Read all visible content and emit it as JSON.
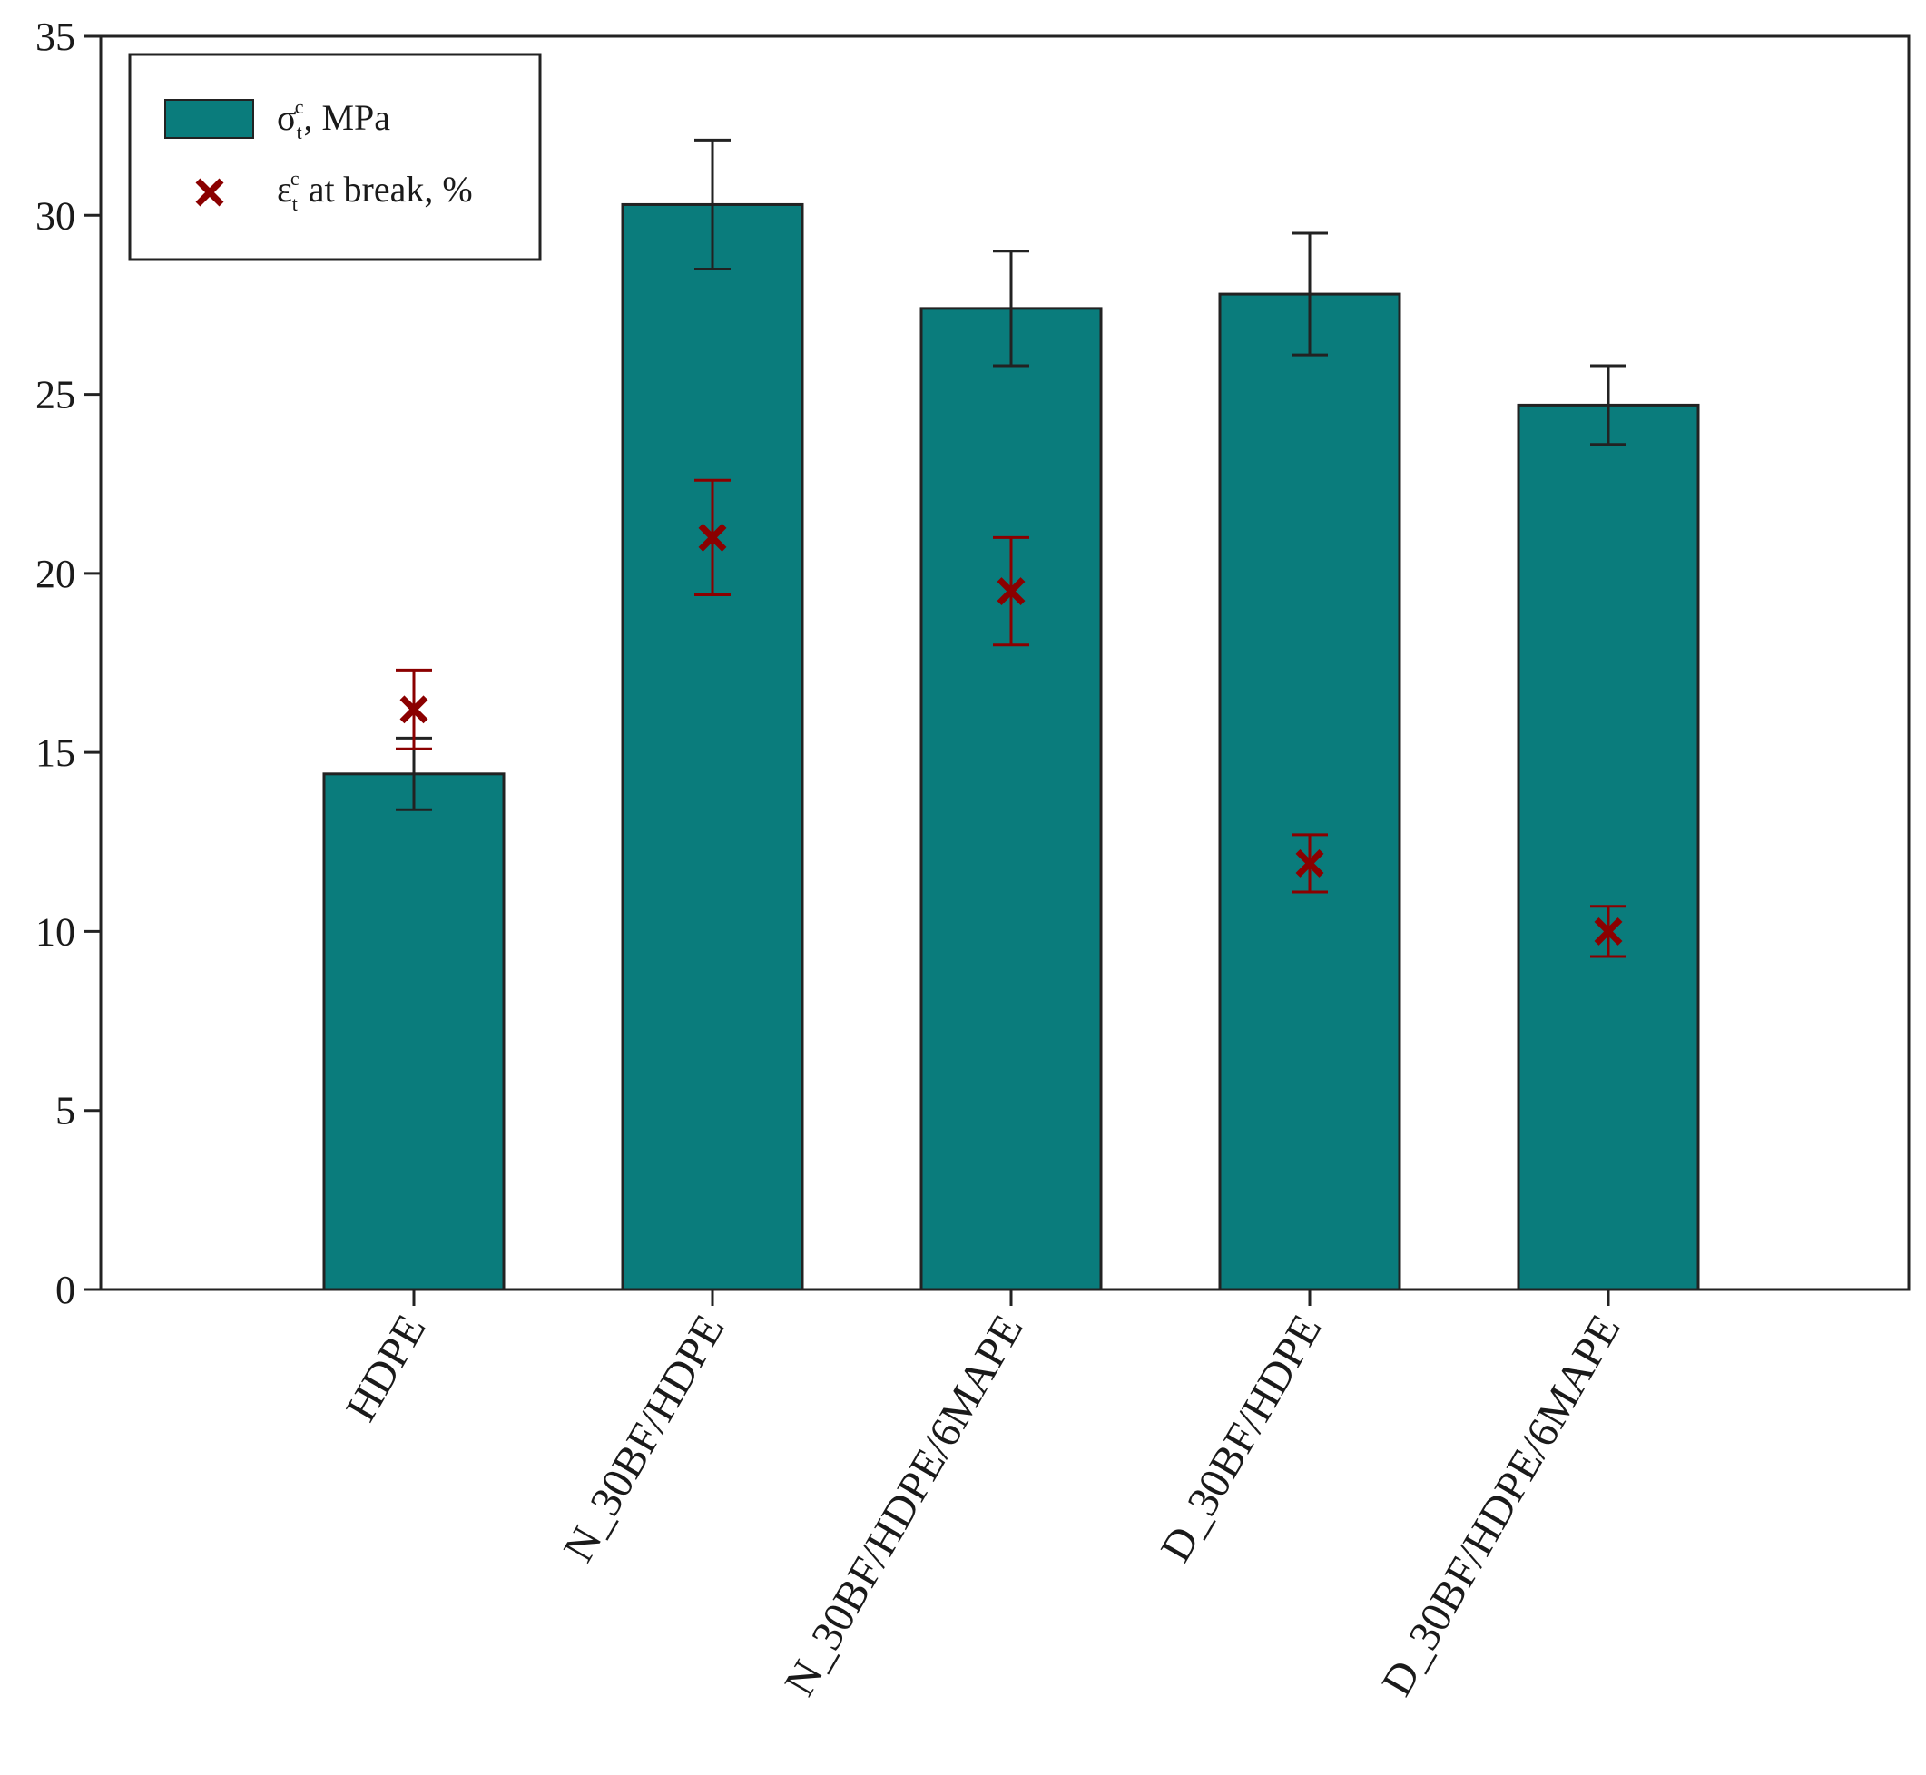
{
  "chart_data": {
    "type": "bar",
    "categories": [
      "HDPE",
      "N_30BF/HDPE",
      "N_30BF/HDPE/6MAPE",
      "D_30BF/HDPE",
      "D_30BF/HDPE/6MAPE"
    ],
    "ylim": [
      0,
      35
    ],
    "yticks": [
      "0",
      "5",
      "10",
      "15",
      "20",
      "25",
      "30",
      "35"
    ],
    "grid": false,
    "legend_position": "top-left",
    "series": [
      {
        "name_parts": [
          "σ",
          "t",
          "c",
          ", MPa"
        ],
        "kind": "bar",
        "color": "#0a7c7c",
        "values": [
          14.4,
          30.3,
          27.4,
          27.8,
          24.7
        ],
        "errors": [
          1.0,
          1.8,
          1.6,
          1.7,
          1.1
        ]
      },
      {
        "name_parts": [
          "ε",
          "t",
          "c",
          " at break, %"
        ],
        "kind": "point",
        "marker": "x",
        "color": "#8b0000",
        "values": [
          16.2,
          21.0,
          19.5,
          11.9,
          10.0
        ],
        "errors": [
          1.1,
          1.6,
          1.5,
          0.8,
          0.7
        ]
      }
    ]
  }
}
